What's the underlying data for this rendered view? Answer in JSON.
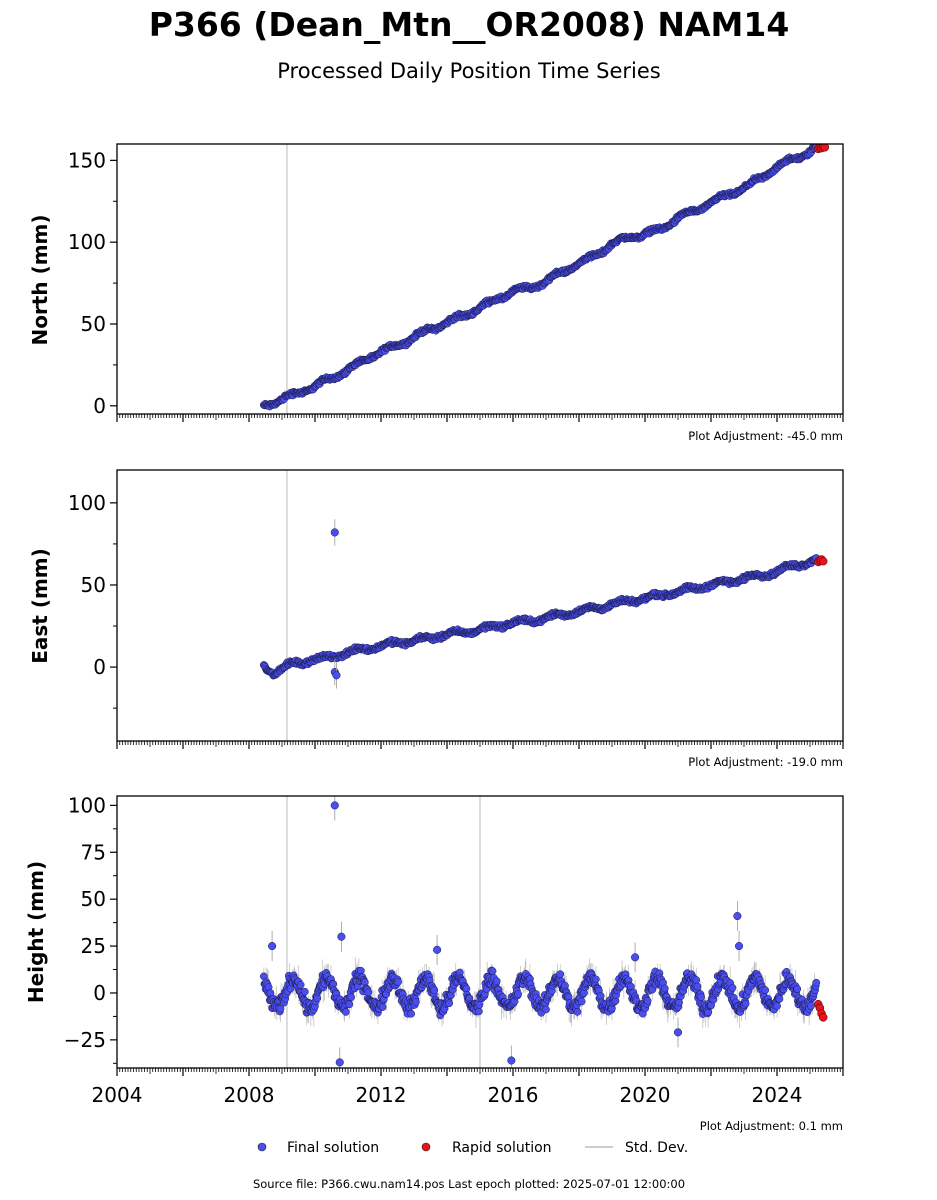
{
  "title": "P366 (Dean_Mtn__OR2008) NAM14",
  "subtitle": "Processed Daily Position Time Series",
  "source_note": "Source file: P366.cwu.nam14.pos  Last epoch plotted: 2025-07-01 12:00:00",
  "legend": {
    "final": "Final solution",
    "rapid": "Rapid solution",
    "std": "Std. Dev."
  },
  "colors": {
    "final": "#4a4ef0",
    "rapid": "#e8141b",
    "std": "#bdbdbd",
    "grey_line": "#d0d0d0"
  },
  "chart_data": [
    {
      "type": "scatter",
      "ylabel": "North (mm)",
      "adjustment": "Plot Adjustment: -45.0 mm",
      "xlim": [
        2004.0,
        2026.0
      ],
      "ylim": [
        -5,
        160
      ],
      "yticks": [
        0,
        50,
        100,
        150
      ],
      "ytick_labels": [
        "0",
        "50",
        "100",
        "150"
      ],
      "vertical_lines": [
        2009.15
      ],
      "series": [
        {
          "name": "Final solution",
          "x": [
            2008.45,
            2008.6,
            2009.0,
            2009.5,
            2010.0,
            2010.5,
            2011.0,
            2011.5,
            2012.0,
            2012.5,
            2013.0,
            2013.5,
            2014.0,
            2014.5,
            2015.0,
            2015.5,
            2016.0,
            2016.5,
            2017.0,
            2017.5,
            2018.0,
            2018.5,
            2019.0,
            2019.5,
            2020.0,
            2020.5,
            2021.0,
            2021.5,
            2022.0,
            2022.5,
            2023.0,
            2023.5,
            2024.0,
            2024.5,
            2025.0,
            2025.2
          ],
          "y": [
            0,
            1,
            4,
            8,
            12,
            17,
            22,
            28,
            33,
            37,
            42,
            47,
            51,
            55,
            60,
            65,
            70,
            72,
            76,
            82,
            87,
            92,
            99,
            103,
            105,
            108,
            115,
            119,
            124,
            129,
            133,
            139,
            146,
            151,
            155,
            158
          ]
        },
        {
          "name": "Rapid solution",
          "x": [
            2025.25,
            2025.3,
            2025.35,
            2025.4,
            2025.45
          ],
          "y": [
            157,
            158,
            157.5,
            158.5,
            158
          ]
        }
      ]
    },
    {
      "type": "scatter",
      "ylabel": "East (mm)",
      "adjustment": "Plot Adjustment: -19.0 mm",
      "xlim": [
        2004.0,
        2026.0
      ],
      "ylim": [
        -45,
        120
      ],
      "yticks": [
        0,
        50,
        100
      ],
      "ytick_labels": [
        "0",
        "50",
        "100"
      ],
      "vertical_lines": [
        2009.15
      ],
      "series": [
        {
          "name": "Final solution",
          "x": [
            2008.45,
            2008.6,
            2008.8,
            2009.2,
            2009.6,
            2010.0,
            2010.5,
            2011.0,
            2011.5,
            2012.0,
            2012.5,
            2013.0,
            2013.5,
            2014.0,
            2014.5,
            2015.0,
            2015.5,
            2016.0,
            2016.5,
            2017.0,
            2017.5,
            2018.0,
            2018.5,
            2019.0,
            2019.5,
            2020.0,
            2020.5,
            2021.0,
            2021.5,
            2022.0,
            2022.5,
            2023.0,
            2023.5,
            2024.0,
            2024.5,
            2025.0,
            2025.2
          ],
          "y": [
            1,
            -2,
            -3,
            1,
            3,
            5,
            6,
            9,
            11,
            13,
            15,
            16,
            18,
            20,
            21,
            23,
            25,
            27,
            28,
            30,
            32,
            34,
            36,
            38,
            40,
            42,
            44,
            46,
            48,
            50,
            52,
            54,
            56,
            58,
            62,
            64,
            65
          ]
        },
        {
          "name": "Rapid solution",
          "x": [
            2025.25,
            2025.3,
            2025.35,
            2025.4
          ],
          "y": [
            64,
            65,
            65.5,
            64.5
          ]
        },
        {
          "name": "outliers",
          "x": [
            2010.6,
            2010.6,
            2010.65
          ],
          "y": [
            82,
            -3,
            -5
          ]
        }
      ]
    },
    {
      "type": "scatter",
      "ylabel": "Height (mm)",
      "adjustment": "Plot Adjustment: 0.1 mm",
      "xlim": [
        2004.0,
        2026.0
      ],
      "ylim": [
        -40,
        105
      ],
      "yticks": [
        -25,
        0,
        25,
        50,
        75,
        100
      ],
      "ytick_labels": [
        "−25",
        "0",
        "25",
        "50",
        "75",
        "100"
      ],
      "xticks": [
        2004,
        2008,
        2012,
        2016,
        2020,
        2024
      ],
      "xtick_labels": [
        "2004",
        "2008",
        "2012",
        "2016",
        "2020",
        "2024"
      ],
      "vertical_lines": [
        2009.15,
        2015.0
      ],
      "series": [
        {
          "name": "Final solution",
          "x_start": 2008.45,
          "x_end": 2025.2,
          "seasonal_amplitude": 8,
          "y_mean": 0
        },
        {
          "name": "Rapid solution",
          "x": [
            2025.25,
            2025.3,
            2025.35,
            2025.4
          ],
          "y": [
            -6,
            -8,
            -11,
            -13
          ]
        },
        {
          "name": "outliers",
          "x": [
            2010.6,
            2010.8,
            2010.75,
            2015.95,
            2022.8,
            2022.85,
            2008.7,
            2013.7,
            2019.7,
            2021.0
          ],
          "y": [
            100,
            30,
            -37,
            -36,
            41,
            25,
            25,
            23,
            19,
            -21
          ]
        }
      ]
    }
  ]
}
